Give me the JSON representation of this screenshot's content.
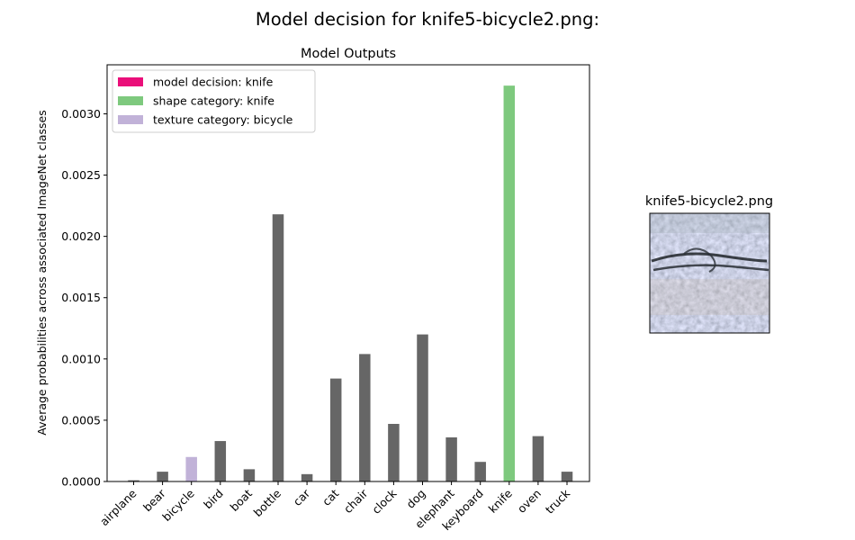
{
  "figure": {
    "suptitle": "Model decision for knife5-bicycle2.png:"
  },
  "chart_data": {
    "type": "bar",
    "title": "Model Outputs",
    "xlabel": "",
    "ylabel": "Average probabilities across associated ImageNet classes",
    "ylim": [
      0,
      0.0034
    ],
    "yticks": [
      "0.0000",
      "0.0005",
      "0.0010",
      "0.0015",
      "0.0020",
      "0.0025",
      "0.0030"
    ],
    "ytick_values": [
      0,
      0.0005,
      0.001,
      0.0015,
      0.002,
      0.0025,
      0.003
    ],
    "grid": false,
    "legend_position": "top-left",
    "categories": [
      "airplane",
      "bear",
      "bicycle",
      "bird",
      "boat",
      "bottle",
      "car",
      "cat",
      "chair",
      "clock",
      "dog",
      "elephant",
      "keyboard",
      "knife",
      "oven",
      "truck"
    ],
    "values": [
      1e-05,
      8e-05,
      0.0002,
      0.00033,
      0.0001,
      0.00218,
      6e-05,
      0.00084,
      0.00104,
      0.00047,
      0.0012,
      0.00036,
      0.00016,
      0.00323,
      0.00037,
      8e-05
    ],
    "bar_colors": [
      "#666666",
      "#666666",
      "#c1b2d8",
      "#666666",
      "#666666",
      "#666666",
      "#666666",
      "#666666",
      "#666666",
      "#666666",
      "#666666",
      "#666666",
      "#666666",
      "#7ec97e",
      "#666666",
      "#666666"
    ],
    "legend": [
      {
        "label": "model decision: knife",
        "color": "#ea0f7a"
      },
      {
        "label": "shape category: knife",
        "color": "#7ec97e"
      },
      {
        "label": "texture category: bicycle",
        "color": "#c1b2d8"
      }
    ]
  },
  "thumbnail": {
    "title": "knife5-bicycle2.png"
  }
}
